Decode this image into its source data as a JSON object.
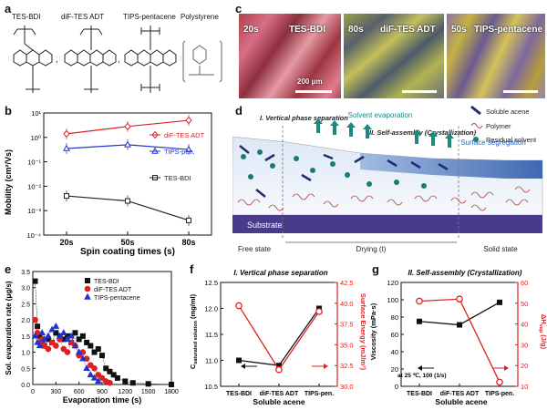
{
  "panels": {
    "a": {
      "letter": "a",
      "molecules": [
        "TES-BDI",
        "diF-TES ADT",
        "TIPS-pentacene",
        "Polystyrene"
      ]
    },
    "b": {
      "letter": "b",
      "ylabel": "Mobility (cm²/Vs)",
      "xlabel": "Spin coating times (s)"
    },
    "c": {
      "letter": "c",
      "images": [
        {
          "time": "20s",
          "material": "TES-BDI",
          "scale": "200 μm"
        },
        {
          "time": "80s",
          "material": "diF-TES ADT",
          "scale": ""
        },
        {
          "time": "50s",
          "material": "TIPS-pentacene",
          "scale": ""
        }
      ]
    },
    "d": {
      "letter": "d",
      "step1": "I. Vertical phase separation",
      "step2": "II. Self-assembly (Crystallization)",
      "solvent_evaporation": "Solvent evaporation",
      "surface_segregation": "Surface segregation",
      "substrate": "Substrate",
      "legend": [
        "Soluble acene",
        "Polymer",
        "Residual solvent"
      ],
      "stages": [
        "Free state",
        "Drying (t)",
        "Solid state"
      ]
    },
    "e": {
      "letter": "e",
      "ylabel": "Sol. evaporation rate (μg/s)",
      "xlabel": "Evaporation time (s)"
    },
    "f": {
      "letter": "f",
      "title": "I. Vertical phase separation",
      "ylabel_left": "C",
      "ylabel_left_sub": "saturated solution",
      "ylabel_left_unit": " (mg/ml)",
      "ylabel_right": "Surface Energy (mJ/m²)",
      "xlabel": "Soluble acene"
    },
    "g": {
      "letter": "g",
      "title": "II. Self-assembly (Crystallization)",
      "ylabel_left": "Viscosity (mPa·s)",
      "ylabel_right": "ΔH",
      "ylabel_right_sub": "vap",
      "ylabel_right_unit": " (J/g)",
      "annotation": "at 25 ℃, 100 (1/s)",
      "xlabel": "Soluble acene"
    }
  },
  "chart_data": [
    {
      "panel": "b",
      "type": "line",
      "xlabel": "Spin coating times (s)",
      "ylabel": "Mobility (cm²/Vs)",
      "yscale": "log",
      "ylim": [
        0.0001,
        10
      ],
      "yticks": [
        "10⁻⁴",
        "10⁻³",
        "10⁻²",
        "10⁻¹",
        "10⁰",
        "10¹"
      ],
      "categories": [
        "20s",
        "50s",
        "80s"
      ],
      "legend": "right",
      "series": [
        {
          "name": "diF-TES ADT",
          "color": "#e02020",
          "marker": "diamond",
          "values": [
            1.4,
            2.8,
            5.0
          ]
        },
        {
          "name": "TIPS-pen.",
          "color": "#2233cc",
          "marker": "triangle",
          "values": [
            0.35,
            0.5,
            0.32
          ]
        },
        {
          "name": "TES-BDI",
          "color": "#222222",
          "marker": "square",
          "values": [
            0.004,
            0.0025,
            0.0004
          ]
        }
      ]
    },
    {
      "panel": "e",
      "type": "scatter",
      "xlabel": "Evaporation time (s)",
      "ylabel": "Sol. evaporation rate (μg/s)",
      "xlim": [
        0,
        1800
      ],
      "ylim": [
        0,
        3.5
      ],
      "xticks": [
        "0",
        "300",
        "600",
        "900",
        "1200",
        "1500",
        "1800"
      ],
      "yticks": [
        "0.0",
        "0.5",
        "1.0",
        "1.5",
        "2.0",
        "2.5",
        "3.0",
        "3.5"
      ],
      "legend": "top-right",
      "series": [
        {
          "name": "TES-BDI",
          "color": "#111111",
          "marker": "square",
          "x": [
            30,
            60,
            90,
            120,
            150,
            200,
            250,
            300,
            350,
            400,
            450,
            500,
            550,
            600,
            650,
            700,
            750,
            800,
            850,
            900,
            950,
            1000,
            1050,
            1100,
            1200,
            1300,
            1500,
            1800
          ],
          "y": [
            3.2,
            1.8,
            1.5,
            1.3,
            1.2,
            1.4,
            1.3,
            1.6,
            1.5,
            1.4,
            1.5,
            1.3,
            1.6,
            1.4,
            1.5,
            1.3,
            1.2,
            1.0,
            1.1,
            0.9,
            0.5,
            0.4,
            0.3,
            0.2,
            0.1,
            0.05,
            0.02,
            0.0
          ]
        },
        {
          "name": "diF-TES ADT",
          "color": "#e02020",
          "marker": "circle",
          "x": [
            30,
            60,
            90,
            120,
            150,
            200,
            250,
            300,
            350,
            400,
            450,
            500,
            550,
            600,
            650,
            700,
            750,
            800,
            850,
            900,
            950,
            1000
          ],
          "y": [
            2.0,
            1.6,
            1.3,
            1.4,
            1.2,
            1.1,
            1.3,
            1.2,
            1.4,
            1.1,
            1.0,
            1.3,
            1.2,
            0.9,
            1.0,
            0.8,
            0.6,
            0.5,
            0.3,
            0.2,
            0.1,
            0.05
          ]
        },
        {
          "name": "TIPS-pentacene",
          "color": "#2233cc",
          "marker": "triangle",
          "x": [
            30,
            60,
            90,
            120,
            150,
            200,
            250,
            300,
            350,
            400,
            450,
            500,
            550,
            600,
            650,
            700,
            750,
            800,
            850
          ],
          "y": [
            1.5,
            1.3,
            1.2,
            1.6,
            1.4,
            1.5,
            1.7,
            1.8,
            1.5,
            1.6,
            1.4,
            1.5,
            1.2,
            1.0,
            0.8,
            0.5,
            0.3,
            0.2,
            0.1
          ]
        }
      ]
    },
    {
      "panel": "f",
      "type": "line",
      "title": "I. Vertical phase separation",
      "categories": [
        "TES-BDI",
        "diF-TES ADT",
        "TIPS-pen."
      ],
      "xlabel": "Soluble acene",
      "ylabel": "C saturated solution (mg/ml)",
      "ylim": [
        10.5,
        12.5
      ],
      "yticks": [
        "10.5",
        "11.0",
        "11.5",
        "12.0",
        "12.5"
      ],
      "y2label": "Surface Energy (mJ/m²)",
      "y2lim": [
        30.0,
        42.5
      ],
      "y2ticks": [
        "30.0",
        "32.5",
        "35.0",
        "37.5",
        "40.0",
        "42.5"
      ],
      "series": [
        {
          "name": "",
          "axis": "left",
          "color": "#111111",
          "values": [
            11.0,
            10.9,
            12.0
          ]
        },
        {
          "name": "",
          "axis": "right",
          "color": "#e02020",
          "values": [
            39.7,
            32.0,
            39.0
          ]
        }
      ]
    },
    {
      "panel": "g",
      "type": "line",
      "title": "II. Self-assembly (Crystallization)",
      "categories": [
        "TES-BDI",
        "diF-TES ADT",
        "TIPS-pen."
      ],
      "xlabel": "Soluble acene",
      "ylabel": "Viscosity (mPa·s)",
      "ylim": [
        0,
        120
      ],
      "yticks": [
        "0",
        "20",
        "40",
        "60",
        "80",
        "100",
        "120"
      ],
      "y2label": "ΔH vap (J/g)",
      "y2lim": [
        10,
        60
      ],
      "y2ticks": [
        "10",
        "20",
        "30",
        "40",
        "50",
        "60"
      ],
      "series": [
        {
          "name": "",
          "axis": "left",
          "color": "#111111",
          "values": [
            75,
            71,
            97
          ]
        },
        {
          "name": "",
          "axis": "right",
          "color": "#e02020",
          "values": [
            51,
            52,
            12
          ]
        }
      ]
    }
  ]
}
